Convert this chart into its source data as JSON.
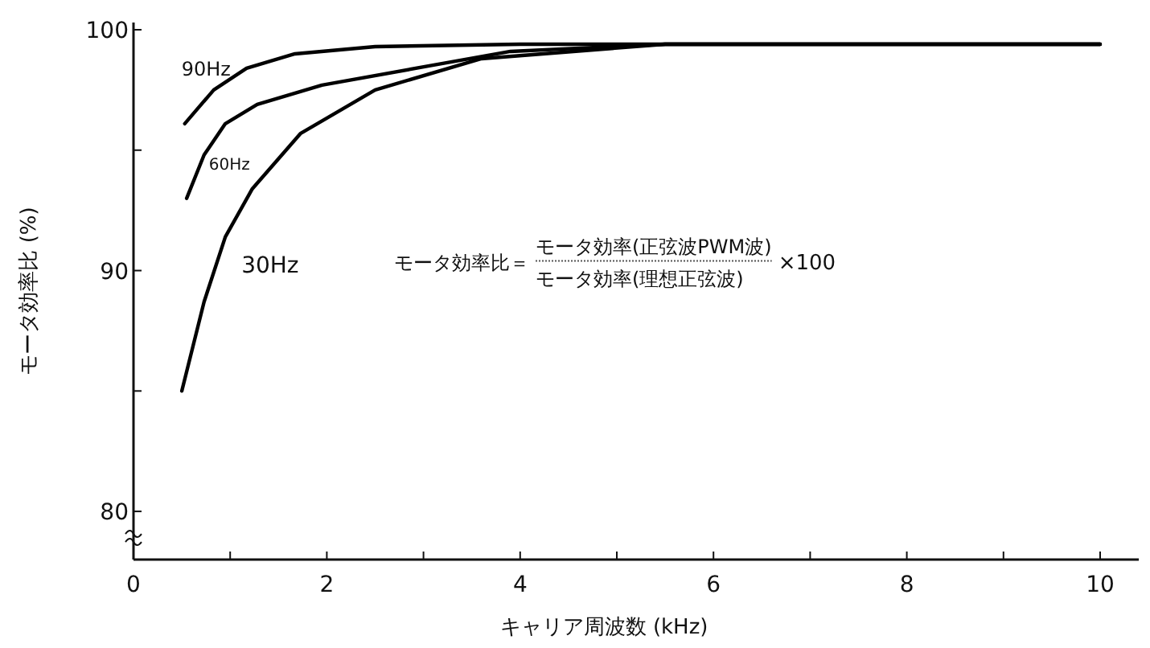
{
  "chart_data": {
    "type": "line",
    "xlabel": "キャリア周波数 (kHz)",
    "ylabel": "モータ効率比 (%)",
    "xlim": [
      0,
      10.4
    ],
    "ylim": [
      78,
      100.3
    ],
    "xticks": [
      0,
      {
        "value": 1,
        "label": null
      },
      2,
      {
        "value": 3,
        "label": null
      },
      4,
      {
        "value": 5,
        "label": null
      },
      6,
      {
        "value": 7,
        "label": null
      },
      8,
      {
        "value": 9,
        "label": null
      },
      10
    ],
    "yticks": [
      80,
      {
        "value": 85,
        "label": null
      },
      90,
      {
        "value": 95,
        "label": null
      },
      100
    ],
    "grid": false,
    "marker": "none",
    "line_style": "solid",
    "annotations": [
      "モータ効率比＝",
      "モータ効率(正弦波PWM波)",
      "モータ効率(理想正弦波)",
      "×100"
    ],
    "series": [
      {
        "name": "90Hz",
        "color": "#000000",
        "x": [
          0.53,
          0.83,
          1.17,
          1.67,
          2.5,
          4,
          6,
          8,
          10
        ],
        "values": [
          96.1,
          97.5,
          98.4,
          99.0,
          99.3,
          99.4,
          99.4,
          99.4,
          99.4
        ]
      },
      {
        "name": "60Hz",
        "color": "#000000",
        "x": [
          0.55,
          0.73,
          0.95,
          1.28,
          1.95,
          3.06,
          3.9,
          5.5,
          8,
          10
        ],
        "values": [
          93.0,
          94.8,
          96.1,
          96.9,
          97.7,
          98.5,
          99.1,
          99.4,
          99.4,
          99.4
        ]
      },
      {
        "name": "30Hz",
        "color": "#000000",
        "x": [
          0.5,
          0.73,
          0.95,
          1.23,
          1.73,
          2.5,
          3.6,
          5.5,
          8,
          10
        ],
        "values": [
          85.0,
          88.7,
          91.4,
          93.4,
          95.7,
          97.5,
          98.8,
          99.4,
          99.4,
          99.4
        ]
      }
    ]
  }
}
